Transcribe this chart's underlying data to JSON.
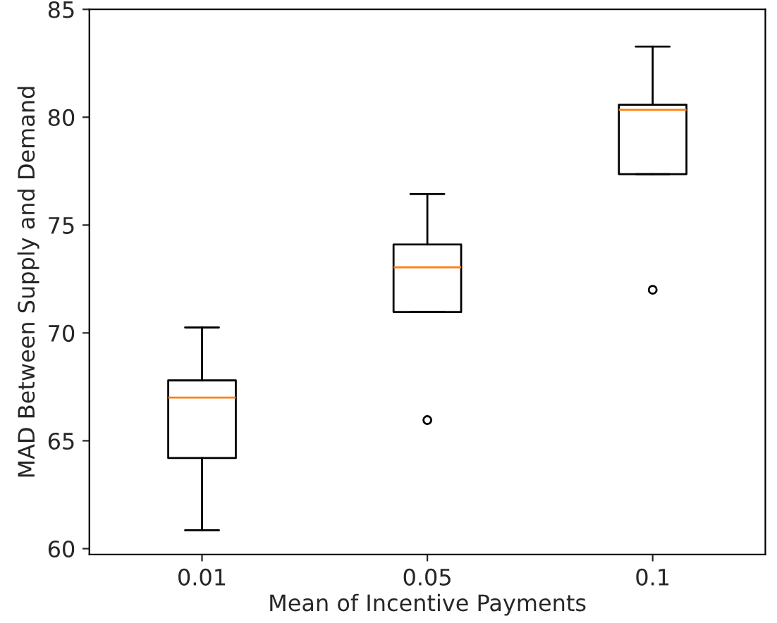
{
  "chart_data": {
    "type": "box",
    "xlabel": "Mean of Incentive Payments",
    "ylabel": "MAD Between Supply and Demand",
    "categories": [
      "0.01",
      "0.05",
      "0.1"
    ],
    "boxes": [
      {
        "low": 60.85,
        "q1": 64.2,
        "median": 67.0,
        "q3": 67.8,
        "high": 70.25
      },
      {
        "low": 70.97,
        "q1": 70.97,
        "median": 73.04,
        "q3": 74.1,
        "high": 76.44,
        "outliers": [
          65.96
        ]
      },
      {
        "low": 77.36,
        "q1": 77.36,
        "median": 80.34,
        "q3": 80.58,
        "high": 83.27,
        "outliers": [
          72.0
        ]
      }
    ],
    "ylim": [
      59.73,
      85
    ],
    "yticks": [
      60,
      65,
      70,
      75,
      80,
      85
    ],
    "grid": false
  }
}
